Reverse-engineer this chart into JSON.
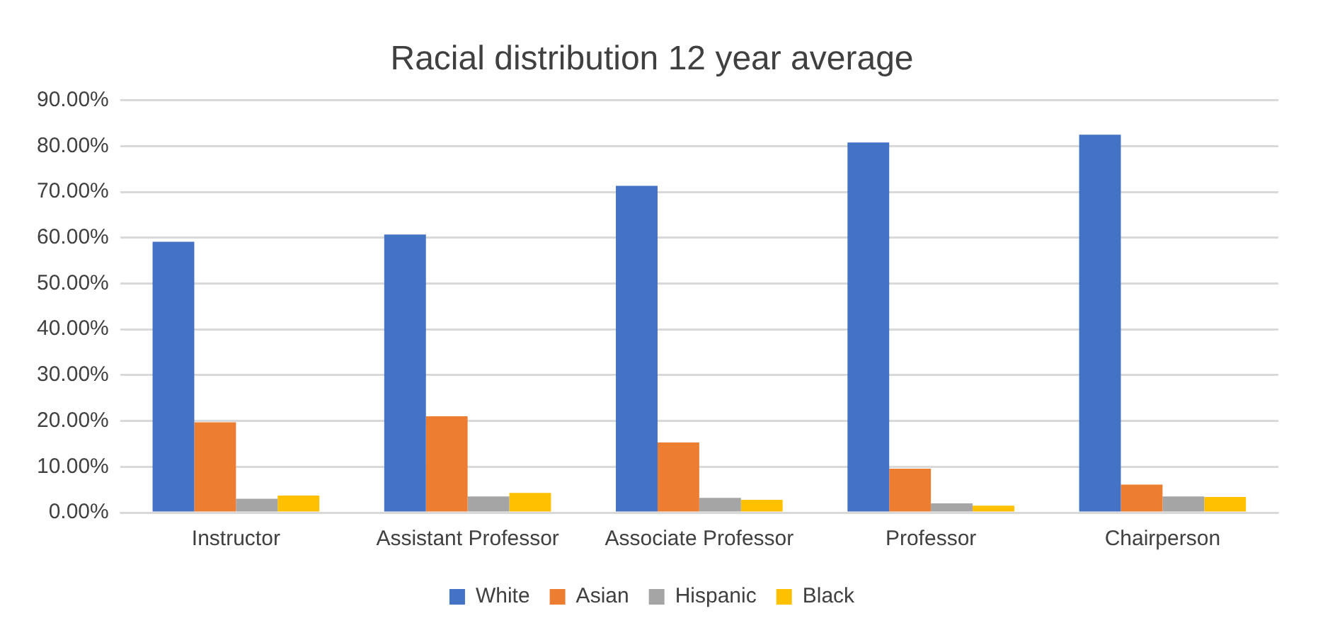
{
  "chart_data": {
    "type": "bar",
    "title": "Racial distribution 12 year average",
    "categories": [
      "Instructor",
      "Assistant Professor",
      "Associate Professor",
      "Professor",
      "Chairperson"
    ],
    "series": [
      {
        "name": "White",
        "color": "#4472c4",
        "values": [
          59.1,
          60.7,
          71.3,
          80.8,
          82.5
        ]
      },
      {
        "name": "Asian",
        "color": "#ed7d31",
        "values": [
          19.7,
          21.0,
          15.3,
          9.6,
          6.1
        ]
      },
      {
        "name": "Hispanic",
        "color": "#a5a5a5",
        "values": [
          3.0,
          3.5,
          3.2,
          2.0,
          3.5
        ]
      },
      {
        "name": "Black",
        "color": "#ffc000",
        "values": [
          3.7,
          4.3,
          2.8,
          1.5,
          3.4
        ]
      }
    ],
    "ylim": [
      0,
      90
    ],
    "yticks": [
      {
        "value": 0,
        "label": "0.00%"
      },
      {
        "value": 10,
        "label": "10.00%"
      },
      {
        "value": 20,
        "label": "20.00%"
      },
      {
        "value": 30,
        "label": "30.00%"
      },
      {
        "value": 40,
        "label": "40.00%"
      },
      {
        "value": 50,
        "label": "50.00%"
      },
      {
        "value": 60,
        "label": "60.00%"
      },
      {
        "value": 70,
        "label": "70.00%"
      },
      {
        "value": 80,
        "label": "80.00%"
      },
      {
        "value": 90,
        "label": "90.00%"
      }
    ],
    "grid": "y",
    "legend": "bottom"
  }
}
